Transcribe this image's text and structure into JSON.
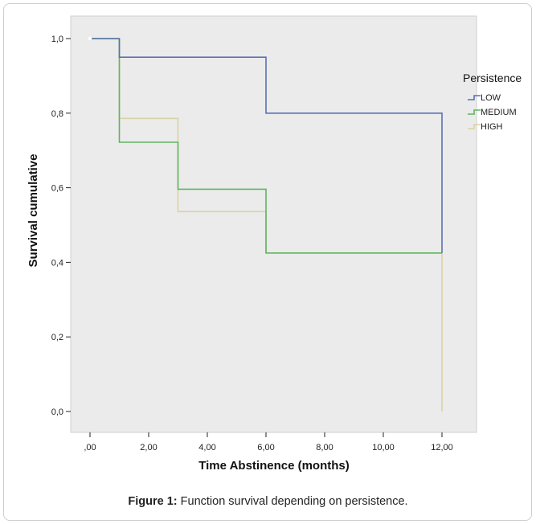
{
  "chart_data": {
    "type": "line",
    "step": true,
    "xlabel": "Time Abstinence (months)",
    "ylabel": "Survival cumulative",
    "xlim": [
      0,
      12
    ],
    "ylim": [
      0,
      1
    ],
    "x_ticks": [
      ",00",
      "2,00",
      "4,00",
      "6,00",
      "8,00",
      "10,00",
      "12,00"
    ],
    "y_ticks": [
      "0,0",
      "0,2",
      "0,4",
      "0,6",
      "0,8",
      "1,0"
    ],
    "grid": false,
    "legend_title": "Persistence",
    "legend_position": "right",
    "series": [
      {
        "name": "LOW",
        "color": "#5b6fb5",
        "x": [
          0,
          1,
          6,
          12,
          12
        ],
        "y": [
          1.0,
          0.95,
          0.8,
          0.8,
          0.425
        ]
      },
      {
        "name": "MEDIUM",
        "color": "#5fb55f",
        "x": [
          0,
          1,
          3,
          6,
          12
        ],
        "y": [
          1.0,
          0.722,
          0.596,
          0.425,
          0.425
        ]
      },
      {
        "name": "HIGH",
        "color": "#d8d3a6",
        "x": [
          0,
          1,
          3,
          6,
          12,
          12
        ],
        "y": [
          1.0,
          0.786,
          0.536,
          0.425,
          0.425,
          0.0
        ]
      }
    ]
  },
  "caption": {
    "label": "Figure 1:",
    "text": " Function survival depending on persistence."
  }
}
